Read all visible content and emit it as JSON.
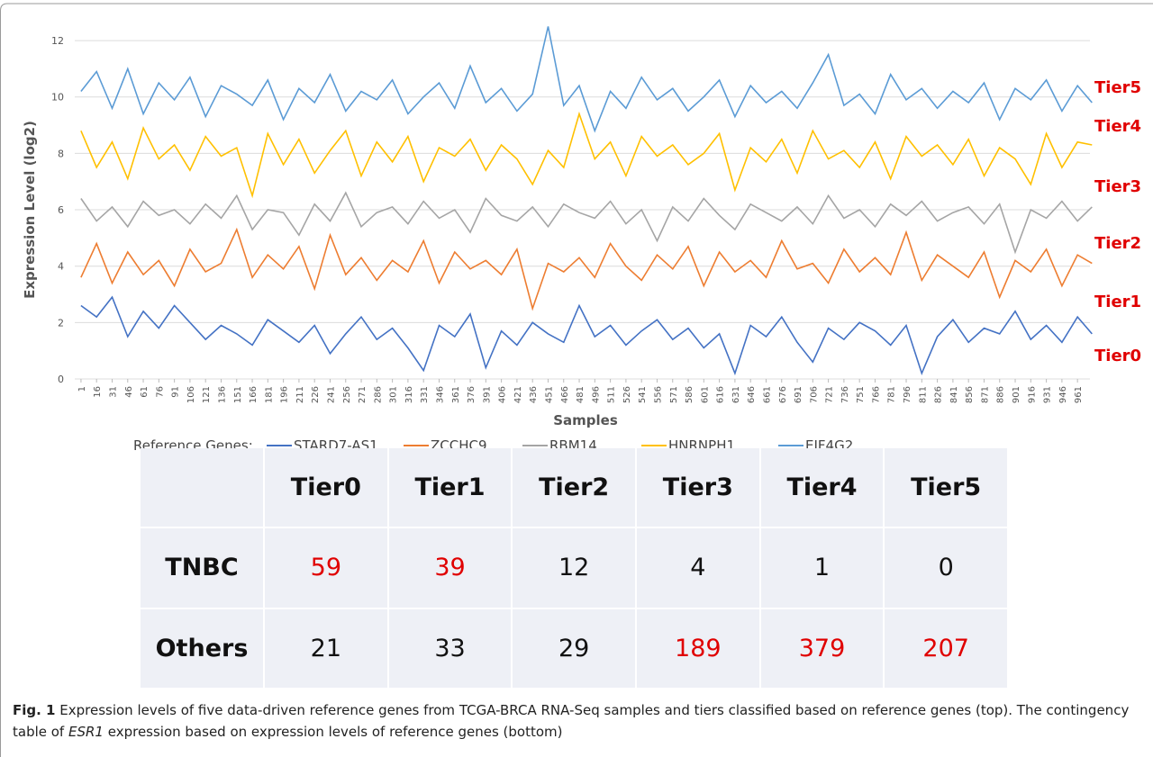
{
  "chart_data": {
    "type": "line",
    "y_label": "Expression Level (log2)",
    "x_label": "Samples",
    "legend_title": "Reference Genes:",
    "x": [
      1,
      16,
      31,
      46,
      61,
      76,
      91,
      106,
      121,
      136,
      151,
      166,
      181,
      196,
      211,
      226,
      241,
      256,
      271,
      286,
      301,
      316,
      331,
      346,
      361,
      376,
      391,
      406,
      421,
      436,
      451,
      466,
      481,
      496,
      511,
      526,
      541,
      556,
      571,
      586,
      601,
      616,
      631,
      646,
      661,
      676,
      691,
      706,
      721,
      736,
      751,
      766,
      781,
      796,
      811,
      826,
      841,
      856,
      871,
      886,
      901,
      916,
      931,
      946,
      961,
      975
    ],
    "xlim": [
      -5,
      973
    ],
    "xticks": [
      1,
      16,
      31,
      46,
      61,
      76,
      91,
      106,
      121,
      136,
      151,
      166,
      181,
      196,
      211,
      226,
      241,
      256,
      271,
      286,
      301,
      316,
      331,
      346,
      361,
      376,
      391,
      406,
      421,
      436,
      451,
      466,
      481,
      496,
      511,
      526,
      541,
      556,
      571,
      586,
      601,
      616,
      631,
      646,
      661,
      676,
      691,
      706,
      721,
      736,
      751,
      766,
      781,
      796,
      811,
      826,
      841,
      856,
      871,
      886,
      901,
      916,
      931,
      946,
      961
    ],
    "ylim": [
      0,
      12.8
    ],
    "yticks": [
      0,
      2,
      4,
      6,
      8,
      10,
      12
    ],
    "grid": true,
    "series": [
      {
        "name": "STARD7-AS1",
        "color": "#4472c4",
        "values": [
          2.6,
          2.2,
          2.9,
          1.5,
          2.4,
          1.8,
          2.6,
          2.0,
          1.4,
          1.9,
          1.6,
          1.2,
          2.1,
          1.7,
          1.3,
          1.9,
          0.9,
          1.6,
          2.2,
          1.4,
          1.8,
          1.1,
          0.3,
          1.9,
          1.5,
          2.3,
          0.4,
          1.7,
          1.2,
          2.0,
          1.6,
          1.3,
          2.6,
          1.5,
          1.9,
          1.2,
          1.7,
          2.1,
          1.4,
          1.8,
          1.1,
          1.6,
          0.2,
          1.9,
          1.5,
          2.2,
          1.3,
          0.6,
          1.8,
          1.4,
          2.0,
          1.7,
          1.2,
          1.9,
          0.2,
          1.5,
          2.1,
          1.3,
          1.8,
          1.6,
          2.4,
          1.4,
          1.9,
          1.3,
          2.2,
          1.6
        ]
      },
      {
        "name": "ZCCHC9",
        "color": "#ed7d31",
        "values": [
          3.6,
          4.8,
          3.4,
          4.5,
          3.7,
          4.2,
          3.3,
          4.6,
          3.8,
          4.1,
          5.3,
          3.6,
          4.4,
          3.9,
          4.7,
          3.2,
          5.1,
          3.7,
          4.3,
          3.5,
          4.2,
          3.8,
          4.9,
          3.4,
          4.5,
          3.9,
          4.2,
          3.7,
          4.6,
          2.5,
          4.1,
          3.8,
          4.3,
          3.6,
          4.8,
          4.0,
          3.5,
          4.4,
          3.9,
          4.7,
          3.3,
          4.5,
          3.8,
          4.2,
          3.6,
          4.9,
          3.9,
          4.1,
          3.4,
          4.6,
          3.8,
          4.3,
          3.7,
          5.2,
          3.5,
          4.4,
          4.0,
          3.6,
          4.5,
          2.9,
          4.2,
          3.8,
          4.6,
          3.3,
          4.4,
          4.1
        ]
      },
      {
        "name": "RBM14",
        "color": "#a5a5a5",
        "values": [
          6.4,
          5.6,
          6.1,
          5.4,
          6.3,
          5.8,
          6.0,
          5.5,
          6.2,
          5.7,
          6.5,
          5.3,
          6.0,
          5.9,
          5.1,
          6.2,
          5.6,
          6.6,
          5.4,
          5.9,
          6.1,
          5.5,
          6.3,
          5.7,
          6.0,
          5.2,
          6.4,
          5.8,
          5.6,
          6.1,
          5.4,
          6.2,
          5.9,
          5.7,
          6.3,
          5.5,
          6.0,
          4.9,
          6.1,
          5.6,
          6.4,
          5.8,
          5.3,
          6.2,
          5.9,
          5.6,
          6.1,
          5.5,
          6.5,
          5.7,
          6.0,
          5.4,
          6.2,
          5.8,
          6.3,
          5.6,
          5.9,
          6.1,
          5.5,
          6.2,
          4.5,
          6.0,
          5.7,
          6.3,
          5.6,
          6.1
        ]
      },
      {
        "name": "HNRNPH1",
        "color": "#ffc000",
        "values": [
          8.8,
          7.5,
          8.4,
          7.1,
          8.9,
          7.8,
          8.3,
          7.4,
          8.6,
          7.9,
          8.2,
          6.5,
          8.7,
          7.6,
          8.5,
          7.3,
          8.1,
          8.8,
          7.2,
          8.4,
          7.7,
          8.6,
          7.0,
          8.2,
          7.9,
          8.5,
          7.4,
          8.3,
          7.8,
          6.9,
          8.1,
          7.5,
          9.4,
          7.8,
          8.4,
          7.2,
          8.6,
          7.9,
          8.3,
          7.6,
          8.0,
          8.7,
          6.7,
          8.2,
          7.7,
          8.5,
          7.3,
          8.8,
          7.8,
          8.1,
          7.5,
          8.4,
          7.1,
          8.6,
          7.9,
          8.3,
          7.6,
          8.5,
          7.2,
          8.2,
          7.8,
          6.9,
          8.7,
          7.5,
          8.4,
          8.3
        ]
      },
      {
        "name": "EIF4G2",
        "color": "#5b9bd5",
        "values": [
          10.2,
          10.9,
          9.6,
          11.0,
          9.4,
          10.5,
          9.9,
          10.7,
          9.3,
          10.4,
          10.1,
          9.7,
          10.6,
          9.2,
          10.3,
          9.8,
          10.8,
          9.5,
          10.2,
          9.9,
          10.6,
          9.4,
          10.0,
          10.5,
          9.6,
          11.1,
          9.8,
          10.3,
          9.5,
          10.1,
          12.5,
          9.7,
          10.4,
          8.8,
          10.2,
          9.6,
          10.7,
          9.9,
          10.3,
          9.5,
          10.0,
          10.6,
          9.3,
          10.4,
          9.8,
          10.2,
          9.6,
          10.5,
          11.5,
          9.7,
          10.1,
          9.4,
          10.8,
          9.9,
          10.3,
          9.6,
          10.2,
          9.8,
          10.5,
          9.2,
          10.3,
          9.9,
          10.6,
          9.5,
          10.4,
          9.8
        ]
      }
    ],
    "annotations": [
      "Tier5",
      "Tier4",
      "Tier3",
      "Tier2",
      "Tier1",
      "Tier0"
    ],
    "annotation_color": "#e00000"
  },
  "table": {
    "columns": [
      "Tier0",
      "Tier1",
      "Tier2",
      "Tier3",
      "Tier4",
      "Tier5"
    ],
    "highlight_color": "#e00000",
    "rows": [
      {
        "label": "TNBC",
        "values": [
          59,
          39,
          12,
          4,
          1,
          0
        ],
        "highlighted": [
          0,
          1
        ]
      },
      {
        "label": "Others",
        "values": [
          21,
          33,
          29,
          189,
          379,
          207
        ],
        "highlighted": [
          3,
          4,
          5
        ]
      }
    ]
  },
  "caption": {
    "label": "Fig. 1",
    "text_before": " Expression levels of five data-driven reference genes from TCGA-BRCA RNA-Seq samples and tiers classified based on reference genes (top). The contingency table of ",
    "italic": "ESR1",
    "text_after": " expression based on expression levels of reference genes (bottom)"
  }
}
